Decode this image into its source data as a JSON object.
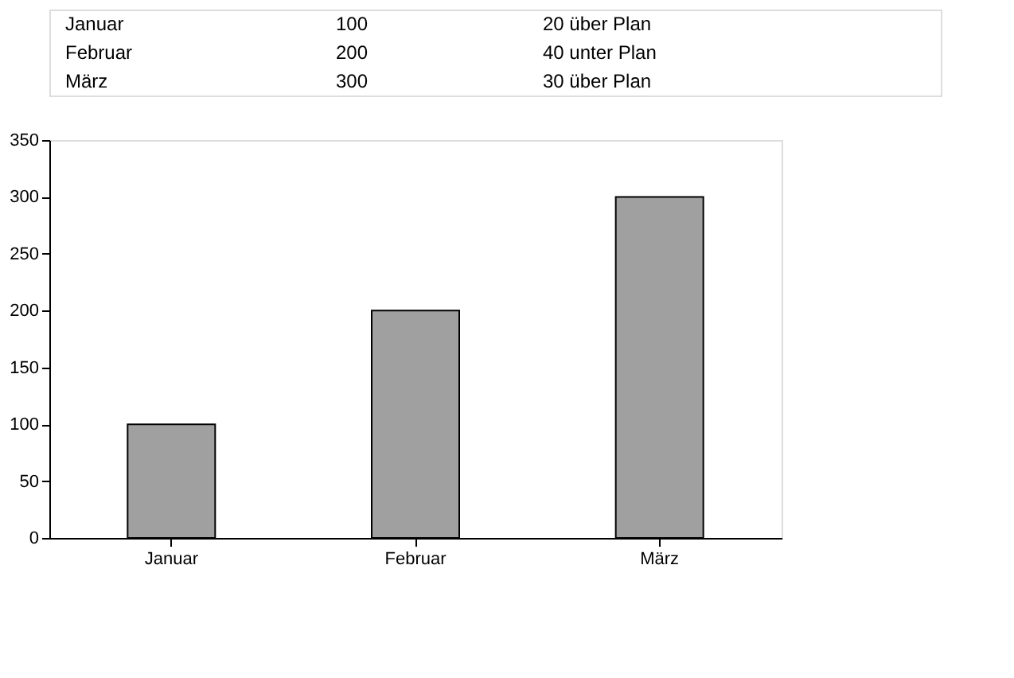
{
  "chart_data": {
    "type": "bar",
    "categories": [
      "Januar",
      "Februar",
      "März"
    ],
    "values": [
      100,
      200,
      300
    ],
    "color": "#a0a0a0",
    "ylim": [
      0,
      350
    ],
    "yticks": [
      0,
      50,
      100,
      150,
      200,
      250,
      300,
      350
    ],
    "annotations": [
      "Januar",
      "100",
      "20 über Plan",
      "Februar",
      "200",
      "40 unter Plan",
      "März",
      "300",
      "30 über Plan"
    ]
  }
}
